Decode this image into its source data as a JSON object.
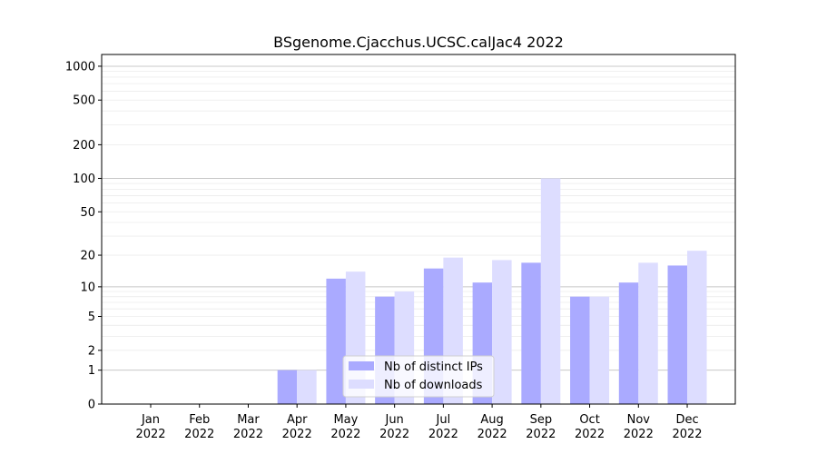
{
  "chart_data": {
    "type": "bar",
    "title": "BSgenome.Cjacchus.UCSC.calJac4 2022",
    "xlabel": "",
    "ylabel": "",
    "y_scale": "log(y+1)",
    "ylim": [
      0,
      1200
    ],
    "grid": true,
    "legend_placement": "bottom-center",
    "categories": [
      "Jan\n2022",
      "Feb\n2022",
      "Mar\n2022",
      "Apr\n2022",
      "May\n2022",
      "Jun\n2022",
      "Jul\n2022",
      "Aug\n2022",
      "Sep\n2022",
      "Oct\n2022",
      "Nov\n2022",
      "Dec\n2022"
    ],
    "y_ticks": [
      0,
      1,
      2,
      5,
      10,
      20,
      50,
      100,
      200,
      500,
      1000
    ],
    "series": [
      {
        "name": "Nb of distinct IPs",
        "color": "#aaaaff",
        "values": [
          0,
          0,
          0,
          1,
          12,
          8,
          15,
          11,
          17,
          8,
          11,
          16
        ]
      },
      {
        "name": "Nb of downloads",
        "color": "#ddddff",
        "values": [
          0,
          0,
          0,
          1,
          14,
          9,
          19,
          18,
          100,
          8,
          17,
          22
        ]
      }
    ]
  }
}
